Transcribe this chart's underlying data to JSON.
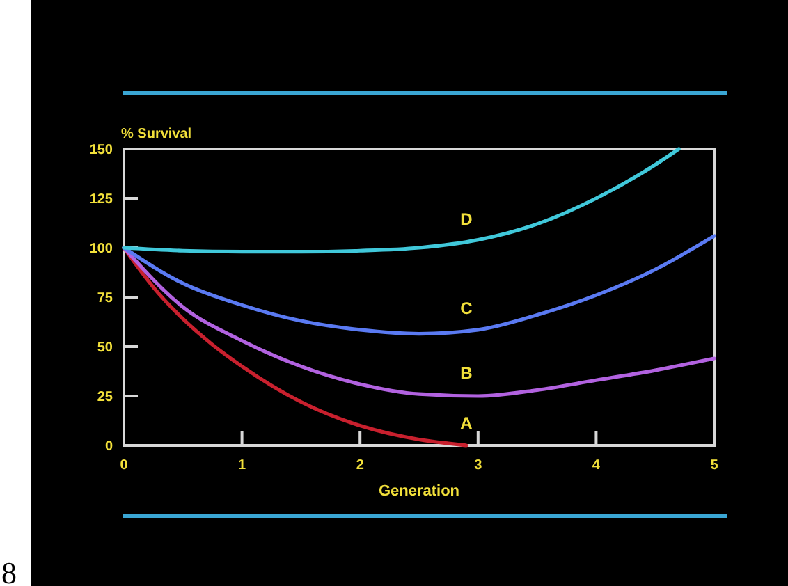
{
  "chart_data": {
    "type": "line",
    "ylabel": "% Survival",
    "xlabel": "Generation",
    "xlim": [
      0,
      5
    ],
    "ylim": [
      0,
      150
    ],
    "xticks": [
      0,
      1,
      2,
      3,
      4,
      5
    ],
    "yticks": [
      0,
      25,
      50,
      75,
      100,
      125,
      150
    ],
    "grid": false,
    "marker": "none",
    "line_style": "solid",
    "annotations": [
      "8"
    ],
    "series": [
      {
        "name": "A",
        "color": "#c8202e",
        "x": [
          0,
          0.25,
          0.5,
          0.75,
          1,
          1.5,
          2,
          2.5,
          2.75,
          2.9
        ],
        "values": [
          100,
          80,
          64,
          51,
          40,
          22,
          10,
          3,
          1,
          0
        ]
      },
      {
        "name": "B",
        "color": "#b262e0",
        "x": [
          0,
          0.5,
          1,
          1.5,
          2,
          2.5,
          3,
          3.5,
          4,
          4.5,
          5
        ],
        "values": [
          100,
          70,
          53,
          40,
          31,
          26,
          25,
          28,
          33,
          38,
          44
        ]
      },
      {
        "name": "C",
        "color": "#5a7af2",
        "x": [
          0,
          0.5,
          1,
          1.5,
          2,
          2.5,
          3,
          3.5,
          4,
          4.5,
          5
        ],
        "values": [
          100,
          82,
          71,
          63,
          58.5,
          56.5,
          58.5,
          66,
          76,
          89,
          106
        ]
      },
      {
        "name": "D",
        "color": "#40c8da",
        "x": [
          0,
          0.5,
          1,
          1.5,
          2,
          2.5,
          3,
          3.5,
          4,
          4.5,
          4.7
        ],
        "values": [
          100,
          98.5,
          98,
          98,
          98.5,
          100,
          104,
          112,
          125,
          142,
          150
        ]
      }
    ]
  }
}
